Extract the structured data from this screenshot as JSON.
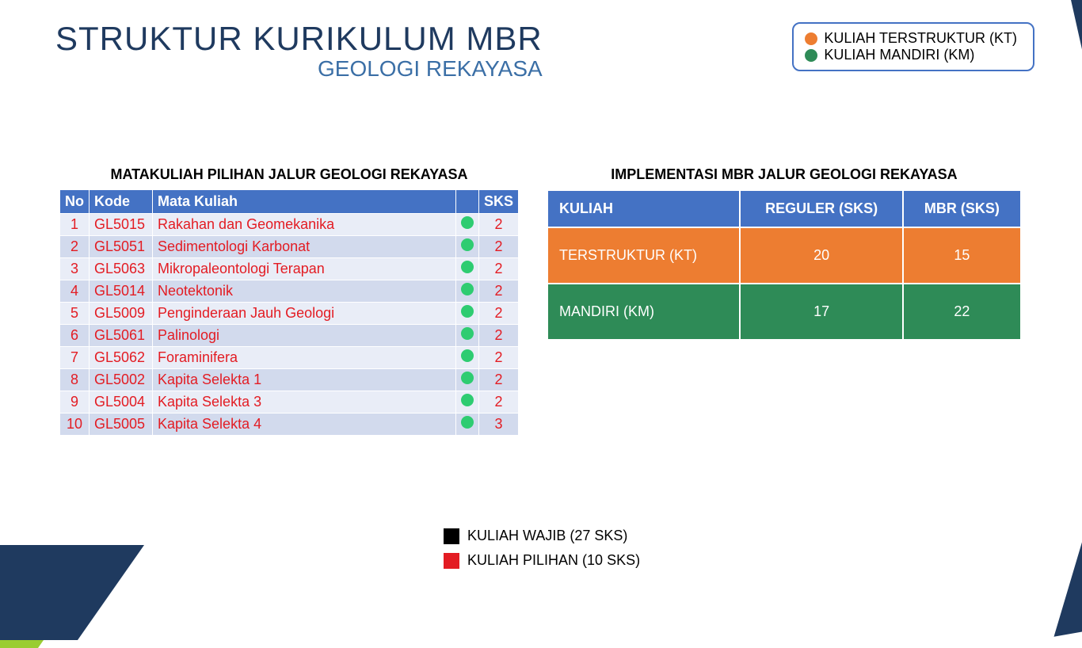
{
  "title": "STRUKTUR KURIKULUM MBR",
  "subtitle": "GEOLOGI REKAYASA",
  "colors": {
    "title": "#1f3a5f",
    "subtitle": "#3b6fa6",
    "header_bg": "#4472c4",
    "header_text": "#ffffff",
    "row_text": "#e31c23",
    "row_odd": "#e9edf7",
    "row_even": "#d2daed",
    "kt": "#ed7d31",
    "km": "#2e8b57",
    "dot_km": "#2ecc71",
    "wajib": "#000000",
    "pilihan": "#e31c23",
    "accent": "#9acd32"
  },
  "legend_top": [
    {
      "label": "KULIAH TERSTRUKTUR (KT)",
      "color_key": "kt"
    },
    {
      "label": "KULIAH MANDIRI (KM)",
      "color_key": "km"
    }
  ],
  "course_section": {
    "title": "MATAKULIAH PILIHAN JALUR GEOLOGI REKAYASA",
    "columns": [
      "No",
      "Kode",
      "Mata Kuliah",
      "",
      "SKS"
    ],
    "rows": [
      {
        "no": "1",
        "kode": "GL5015",
        "mk": "Rakahan dan Geomekanika",
        "type": "km",
        "sks": "2"
      },
      {
        "no": "2",
        "kode": "GL5051",
        "mk": "Sedimentologi Karbonat",
        "type": "km",
        "sks": "2"
      },
      {
        "no": "3",
        "kode": "GL5063",
        "mk": "Mikropaleontologi Terapan",
        "type": "km",
        "sks": "2"
      },
      {
        "no": "4",
        "kode": "GL5014",
        "mk": "Neotektonik",
        "type": "km",
        "sks": "2"
      },
      {
        "no": "5",
        "kode": "GL5009",
        "mk": "Penginderaan Jauh Geologi",
        "type": "km",
        "sks": "2"
      },
      {
        "no": "6",
        "kode": "GL5061",
        "mk": "Palinologi",
        "type": "km",
        "sks": "2"
      },
      {
        "no": "7",
        "kode": "GL5062",
        "mk": "Foraminifera",
        "type": "km",
        "sks": "2"
      },
      {
        "no": "8",
        "kode": "GL5002",
        "mk": "Kapita Selekta 1",
        "type": "km",
        "sks": "2"
      },
      {
        "no": "9",
        "kode": "GL5004",
        "mk": "Kapita Selekta 3",
        "type": "km",
        "sks": "2"
      },
      {
        "no": "10",
        "kode": "GL5005",
        "mk": "Kapita Selekta 4",
        "type": "km",
        "sks": "3"
      }
    ]
  },
  "impl_section": {
    "title": "IMPLEMENTASI MBR JALUR GEOLOGI REKAYASA",
    "columns": [
      "KULIAH",
      "REGULER (SKS)",
      "MBR (SKS)"
    ],
    "rows": [
      {
        "label": "TERSTRUKTUR (KT)",
        "reguler": "20",
        "mbr": "15",
        "bg_key": "kt"
      },
      {
        "label": "MANDIRI (KM)",
        "reguler": "17",
        "mbr": "22",
        "bg_key": "km"
      }
    ]
  },
  "legend_bottom": [
    {
      "label": "KULIAH WAJIB (27 SKS)",
      "color_key": "wajib"
    },
    {
      "label": "KULIAH PILIHAN (10 SKS)",
      "color_key": "pilihan"
    }
  ]
}
